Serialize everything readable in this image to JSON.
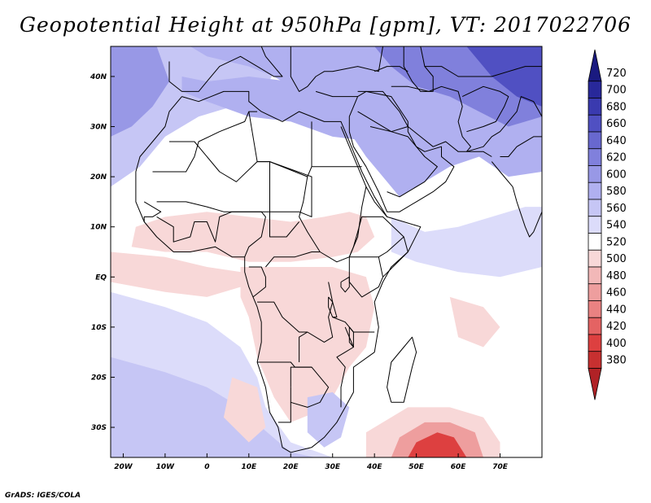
{
  "title": "Geopotential Height at 950hPa [gpm], VT: 2017022706",
  "credit": "GrADS: IGES/COLA",
  "map": {
    "variable": "Geopotential Height",
    "level": "950hPa",
    "units": "gpm",
    "valid_time": "2017022706",
    "lon_range": [
      -23,
      80
    ],
    "lat_range": [
      -36,
      46
    ],
    "lon_ticks": [
      {
        "value": -20,
        "label": "20W"
      },
      {
        "value": -10,
        "label": "10W"
      },
      {
        "value": 0,
        "label": "0"
      },
      {
        "value": 10,
        "label": "10E"
      },
      {
        "value": 20,
        "label": "20E"
      },
      {
        "value": 30,
        "label": "30E"
      },
      {
        "value": 40,
        "label": "40E"
      },
      {
        "value": 50,
        "label": "50E"
      },
      {
        "value": 60,
        "label": "60E"
      },
      {
        "value": 70,
        "label": "70E"
      }
    ],
    "lat_ticks": [
      {
        "value": 40,
        "label": "40N"
      },
      {
        "value": 30,
        "label": "30N"
      },
      {
        "value": 20,
        "label": "20N"
      },
      {
        "value": 10,
        "label": "10N"
      },
      {
        "value": 0,
        "label": "EQ"
      },
      {
        "value": -10,
        "label": "10S"
      },
      {
        "value": -20,
        "label": "20S"
      },
      {
        "value": -30,
        "label": "30S"
      }
    ]
  },
  "colorbar": {
    "levels": [
      "380",
      "400",
      "420",
      "440",
      "460",
      "480",
      "500",
      "520",
      "540",
      "560",
      "580",
      "600",
      "620",
      "640",
      "660",
      "680",
      "700",
      "720"
    ],
    "colors": [
      "#b02226",
      "#c73030",
      "#dd4040",
      "#e46363",
      "#ea8282",
      "#ee9e9e",
      "#f2b8b8",
      "#f8d8d8",
      "#ffffff",
      "#dcdcfa",
      "#c6c6f5",
      "#b0b0f0",
      "#9898e6",
      "#8080dc",
      "#6868cf",
      "#5050c2",
      "#3a3aaf",
      "#28289a",
      "#1a1a80"
    ]
  },
  "features": {
    "regions": [
      {
        "name": "base-ocean",
        "color": "#ffffff"
      },
      {
        "name": "south-atlantic-band",
        "color": "#dcdcfa"
      },
      {
        "name": "south-atlantic-high",
        "color": "#c6c6f5"
      },
      {
        "name": "north-atlantic-band",
        "color": "#c6c6f5"
      },
      {
        "name": "north-atlantic-high",
        "color": "#9898e6"
      },
      {
        "name": "mediterranean-band",
        "color": "#b0b0f0"
      },
      {
        "name": "middle-east-ridge",
        "color": "#b0b0f0"
      },
      {
        "name": "asia-high",
        "color": "#8080dc"
      },
      {
        "name": "himalaya-high",
        "color": "#5050c2"
      },
      {
        "name": "arabian-sea-band",
        "color": "#dcdcfa"
      },
      {
        "name": "sahel-trough",
        "color": "#f8d8d8"
      },
      {
        "name": "congo-trough",
        "color": "#f8d8d8"
      },
      {
        "name": "indian-ocean-low-outer",
        "color": "#f8d8d8"
      },
      {
        "name": "indian-ocean-low-mid",
        "color": "#ee9e9e"
      },
      {
        "name": "indian-ocean-low-core",
        "color": "#dd4040"
      },
      {
        "name": "gulf-guinea-trough",
        "color": "#f8d8d8"
      },
      {
        "name": "south-east-atlantic-trough",
        "color": "#f8d8d8"
      },
      {
        "name": "south-africa-ridge",
        "color": "#c6c6f5"
      },
      {
        "name": "east-indian-ocean-patch",
        "color": "#f8d8d8"
      }
    ]
  }
}
